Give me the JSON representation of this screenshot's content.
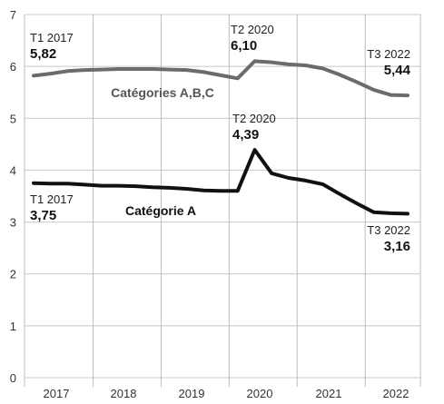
{
  "chart_data": {
    "type": "line",
    "title": "",
    "xlabel": "",
    "ylabel": "",
    "ylim": [
      0,
      7
    ],
    "yticks": [
      "0",
      "1",
      "2",
      "3",
      "4",
      "5",
      "6",
      "7"
    ],
    "xticks": [
      "2017",
      "2018",
      "2019",
      "2020",
      "2021",
      "2022"
    ],
    "x": [
      "T1 2017",
      "T2 2017",
      "T3 2017",
      "T4 2017",
      "T1 2018",
      "T2 2018",
      "T3 2018",
      "T4 2018",
      "T1 2019",
      "T2 2019",
      "T3 2019",
      "T4 2019",
      "T1 2020",
      "T2 2020",
      "T3 2020",
      "T4 2020",
      "T1 2021",
      "T2 2021",
      "T3 2021",
      "T4 2021",
      "T1 2022",
      "T2 2022",
      "T3 2022"
    ],
    "grid": true,
    "series": [
      {
        "name": "Catégories A,B,C",
        "color": "#6b6b6b",
        "values": [
          5.82,
          5.86,
          5.91,
          5.93,
          5.94,
          5.95,
          5.95,
          5.95,
          5.94,
          5.93,
          5.89,
          5.83,
          5.77,
          6.1,
          6.08,
          6.04,
          6.02,
          5.96,
          5.84,
          5.7,
          5.55,
          5.45,
          5.44
        ]
      },
      {
        "name": "Catégorie A",
        "color": "#111111",
        "values": [
          3.75,
          3.74,
          3.74,
          3.72,
          3.7,
          3.7,
          3.69,
          3.67,
          3.66,
          3.64,
          3.61,
          3.6,
          3.6,
          4.39,
          3.94,
          3.85,
          3.8,
          3.73,
          3.54,
          3.36,
          3.19,
          3.17,
          3.16
        ]
      }
    ],
    "annotations": [
      {
        "series": 0,
        "point": 0,
        "period": "T1 2017",
        "value": "5,82",
        "pos": "above"
      },
      {
        "series": 0,
        "point": 13,
        "period": "T2 2020",
        "value": "6,10",
        "pos": "above"
      },
      {
        "series": 0,
        "point": 22,
        "period": "T3 2022",
        "value": "5,44",
        "pos": "above-right"
      },
      {
        "series": 1,
        "point": 0,
        "period": "T1 2017",
        "value": "3,75",
        "pos": "below"
      },
      {
        "series": 1,
        "point": 13,
        "period": "T2 2020",
        "value": "4,39",
        "pos": "above"
      },
      {
        "series": 1,
        "point": 22,
        "period": "T3 2022",
        "value": "3,16",
        "pos": "below-right"
      }
    ]
  }
}
